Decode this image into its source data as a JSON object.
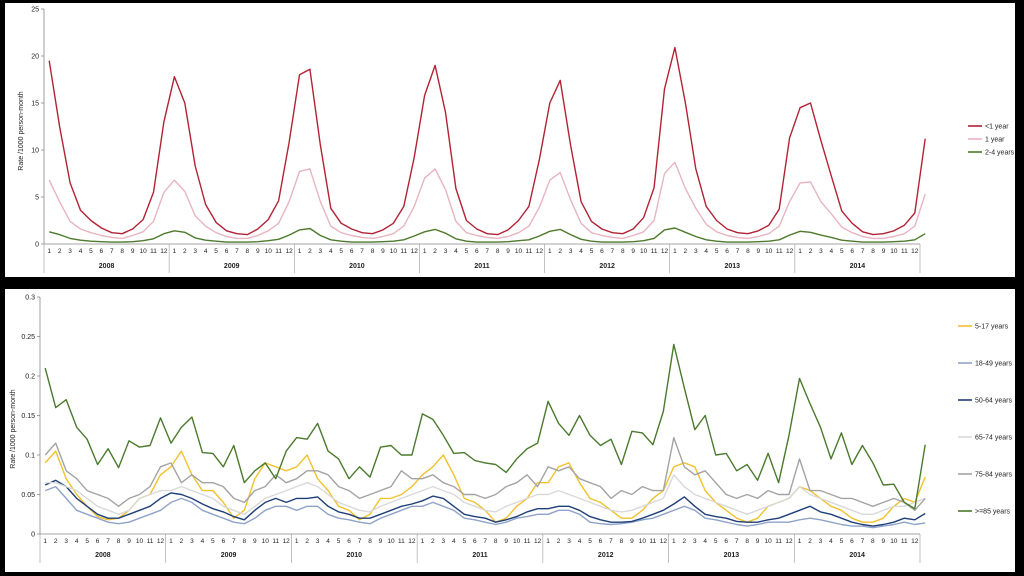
{
  "chart_data": [
    {
      "type": "line",
      "ylabel": "Rate /1000 person-month",
      "xlabel": "",
      "ylim": [
        0,
        25
      ],
      "yticks": [
        0,
        5,
        10,
        15,
        20,
        25
      ],
      "ytick_labels": [
        "0",
        "5",
        "10",
        "15",
        "20",
        "25"
      ],
      "grid": false,
      "legend_position": "right",
      "months": [
        "1",
        "2",
        "3",
        "4",
        "5",
        "6",
        "7",
        "8",
        "9",
        "10",
        "11",
        "12"
      ],
      "years": [
        "2008",
        "2009",
        "2010",
        "2011",
        "2012",
        "2013",
        "2014"
      ],
      "series": [
        {
          "name": "<1 year",
          "color": "#b22234",
          "values": [
            19.5,
            12.5,
            6.5,
            3.6,
            2.5,
            1.7,
            1.2,
            1.1,
            1.6,
            2.6,
            5.5,
            13.0,
            17.8,
            15.0,
            8.3,
            4.2,
            2.3,
            1.4,
            1.1,
            1.0,
            1.6,
            2.6,
            4.6,
            10.8,
            18.0,
            18.6,
            10.5,
            3.8,
            2.2,
            1.6,
            1.2,
            1.1,
            1.5,
            2.2,
            4.0,
            9.2,
            15.8,
            19.0,
            14.0,
            5.9,
            2.5,
            1.6,
            1.1,
            1.0,
            1.5,
            2.5,
            4.0,
            9.0,
            15.0,
            17.4,
            10.5,
            4.5,
            2.4,
            1.6,
            1.2,
            1.1,
            1.6,
            2.8,
            6.0,
            16.5,
            20.9,
            15.0,
            8.0,
            4.0,
            2.5,
            1.6,
            1.2,
            1.1,
            1.4,
            2.0,
            3.7,
            11.3,
            14.5,
            15.0,
            11.0,
            7.2,
            3.5,
            2.2,
            1.3,
            1.0,
            1.1,
            1.4,
            2.0,
            3.3,
            11.2
          ]
        },
        {
          "name": "1 year",
          "color": "#e8b4c0",
          "values": [
            6.8,
            4.5,
            2.4,
            1.6,
            1.2,
            0.9,
            0.7,
            0.6,
            0.9,
            1.3,
            2.4,
            5.5,
            6.8,
            5.6,
            3.0,
            1.9,
            1.2,
            0.8,
            0.6,
            0.6,
            0.9,
            1.4,
            2.2,
            4.5,
            7.7,
            8.0,
            4.5,
            1.9,
            1.2,
            0.9,
            0.7,
            0.6,
            0.8,
            1.1,
            1.9,
            4.0,
            7.0,
            8.0,
            5.8,
            2.4,
            1.2,
            0.9,
            0.7,
            0.6,
            0.8,
            1.2,
            1.9,
            3.9,
            6.8,
            7.6,
            4.7,
            2.2,
            1.2,
            0.9,
            0.7,
            0.6,
            0.9,
            1.3,
            2.5,
            7.5,
            8.7,
            5.9,
            3.8,
            2.1,
            1.3,
            0.9,
            0.7,
            0.6,
            0.8,
            1.1,
            1.9,
            4.5,
            6.5,
            6.6,
            4.5,
            3.2,
            1.8,
            1.2,
            0.8,
            0.6,
            0.6,
            0.8,
            1.1,
            1.9,
            5.3
          ]
        },
        {
          "name": "2-4 years",
          "color": "#4e7a2c",
          "values": [
            1.3,
            1.0,
            0.6,
            0.4,
            0.3,
            0.25,
            0.2,
            0.2,
            0.25,
            0.35,
            0.55,
            1.1,
            1.4,
            1.25,
            0.65,
            0.4,
            0.3,
            0.2,
            0.2,
            0.2,
            0.25,
            0.35,
            0.5,
            0.95,
            1.5,
            1.65,
            0.9,
            0.45,
            0.3,
            0.2,
            0.2,
            0.2,
            0.25,
            0.3,
            0.45,
            0.85,
            1.3,
            1.55,
            1.15,
            0.55,
            0.3,
            0.2,
            0.2,
            0.2,
            0.25,
            0.35,
            0.45,
            0.85,
            1.35,
            1.55,
            1.0,
            0.5,
            0.3,
            0.2,
            0.2,
            0.2,
            0.25,
            0.35,
            0.6,
            1.5,
            1.7,
            1.25,
            0.8,
            0.45,
            0.3,
            0.2,
            0.2,
            0.2,
            0.25,
            0.3,
            0.45,
            0.95,
            1.35,
            1.25,
            0.95,
            0.7,
            0.4,
            0.3,
            0.2,
            0.2,
            0.2,
            0.25,
            0.3,
            0.45,
            1.1
          ]
        }
      ]
    },
    {
      "type": "line",
      "ylabel": "Rate /1000 person-month",
      "xlabel": "",
      "ylim": [
        0,
        0.3
      ],
      "yticks": [
        0,
        0.05,
        0.1,
        0.15,
        0.2,
        0.25,
        0.3
      ],
      "ytick_labels": [
        "0",
        "0.05",
        "0.1",
        "0.15",
        "0.2",
        "0.25",
        "0.3"
      ],
      "grid": false,
      "legend_position": "right",
      "months": [
        "1",
        "2",
        "3",
        "4",
        "5",
        "6",
        "7",
        "8",
        "9",
        "10",
        "11",
        "12"
      ],
      "years": [
        "2008",
        "2009",
        "2010",
        "2011",
        "2012",
        "2013",
        "2014"
      ],
      "series": [
        {
          "name": "5-17 years",
          "color": "#f2c12e",
          "values": [
            0.09,
            0.105,
            0.07,
            0.05,
            0.035,
            0.022,
            0.018,
            0.02,
            0.03,
            0.045,
            0.05,
            0.075,
            0.085,
            0.105,
            0.075,
            0.055,
            0.055,
            0.04,
            0.02,
            0.03,
            0.07,
            0.09,
            0.085,
            0.08,
            0.085,
            0.1,
            0.07,
            0.055,
            0.035,
            0.03,
            0.018,
            0.025,
            0.045,
            0.045,
            0.05,
            0.06,
            0.075,
            0.085,
            0.1,
            0.075,
            0.045,
            0.04,
            0.03,
            0.015,
            0.02,
            0.035,
            0.045,
            0.065,
            0.065,
            0.085,
            0.09,
            0.065,
            0.045,
            0.04,
            0.03,
            0.02,
            0.02,
            0.03,
            0.045,
            0.055,
            0.085,
            0.09,
            0.085,
            0.055,
            0.04,
            0.03,
            0.02,
            0.015,
            0.02,
            0.035,
            0.04,
            0.045,
            0.06,
            0.055,
            0.045,
            0.035,
            0.03,
            0.02,
            0.015,
            0.015,
            0.02,
            0.035,
            0.045,
            0.04,
            0.072
          ]
        },
        {
          "name": "18-49 years",
          "color": "#8fa3c8",
          "values": [
            0.055,
            0.06,
            0.045,
            0.03,
            0.025,
            0.02,
            0.015,
            0.013,
            0.015,
            0.02,
            0.025,
            0.03,
            0.04,
            0.045,
            0.04,
            0.03,
            0.025,
            0.02,
            0.015,
            0.013,
            0.02,
            0.03,
            0.035,
            0.035,
            0.03,
            0.035,
            0.035,
            0.025,
            0.02,
            0.018,
            0.015,
            0.013,
            0.02,
            0.025,
            0.03,
            0.035,
            0.035,
            0.04,
            0.035,
            0.03,
            0.02,
            0.018,
            0.015,
            0.012,
            0.015,
            0.02,
            0.022,
            0.025,
            0.025,
            0.03,
            0.03,
            0.025,
            0.015,
            0.013,
            0.012,
            0.013,
            0.015,
            0.018,
            0.02,
            0.025,
            0.03,
            0.035,
            0.03,
            0.02,
            0.018,
            0.015,
            0.012,
            0.01,
            0.012,
            0.015,
            0.015,
            0.015,
            0.018,
            0.02,
            0.018,
            0.015,
            0.012,
            0.01,
            0.01,
            0.008,
            0.01,
            0.012,
            0.015,
            0.012,
            0.014
          ]
        },
        {
          "name": "50-64 years",
          "color": "#1f3f78",
          "values": [
            0.062,
            0.068,
            0.06,
            0.045,
            0.035,
            0.025,
            0.02,
            0.02,
            0.025,
            0.03,
            0.035,
            0.045,
            0.052,
            0.05,
            0.045,
            0.038,
            0.032,
            0.028,
            0.022,
            0.018,
            0.03,
            0.04,
            0.045,
            0.04,
            0.045,
            0.045,
            0.047,
            0.035,
            0.028,
            0.025,
            0.02,
            0.02,
            0.025,
            0.03,
            0.035,
            0.038,
            0.042,
            0.048,
            0.045,
            0.035,
            0.025,
            0.022,
            0.02,
            0.015,
            0.018,
            0.022,
            0.028,
            0.032,
            0.032,
            0.035,
            0.035,
            0.03,
            0.022,
            0.018,
            0.015,
            0.015,
            0.016,
            0.02,
            0.025,
            0.03,
            0.038,
            0.047,
            0.035,
            0.025,
            0.022,
            0.02,
            0.016,
            0.015,
            0.015,
            0.018,
            0.02,
            0.025,
            0.03,
            0.035,
            0.028,
            0.025,
            0.02,
            0.015,
            0.012,
            0.01,
            0.012,
            0.015,
            0.02,
            0.018,
            0.026
          ]
        },
        {
          "name": "65-74 years",
          "color": "#d9d9d9",
          "values": [
            0.065,
            0.065,
            0.06,
            0.055,
            0.045,
            0.035,
            0.03,
            0.025,
            0.03,
            0.045,
            0.05,
            0.055,
            0.055,
            0.06,
            0.055,
            0.05,
            0.045,
            0.035,
            0.03,
            0.025,
            0.035,
            0.045,
            0.05,
            0.055,
            0.06,
            0.065,
            0.06,
            0.05,
            0.04,
            0.035,
            0.03,
            0.028,
            0.035,
            0.04,
            0.045,
            0.05,
            0.055,
            0.06,
            0.055,
            0.05,
            0.04,
            0.035,
            0.03,
            0.028,
            0.035,
            0.04,
            0.045,
            0.05,
            0.05,
            0.055,
            0.05,
            0.045,
            0.04,
            0.035,
            0.03,
            0.028,
            0.03,
            0.035,
            0.04,
            0.045,
            0.075,
            0.06,
            0.05,
            0.045,
            0.04,
            0.035,
            0.03,
            0.025,
            0.03,
            0.035,
            0.04,
            0.045,
            0.06,
            0.05,
            0.045,
            0.04,
            0.035,
            0.03,
            0.025,
            0.025,
            0.03,
            0.035,
            0.035,
            0.04,
            0.045
          ]
        },
        {
          "name": "75-84 years",
          "color": "#a3a3a3",
          "values": [
            0.1,
            0.115,
            0.08,
            0.07,
            0.055,
            0.05,
            0.045,
            0.035,
            0.045,
            0.05,
            0.06,
            0.085,
            0.09,
            0.065,
            0.075,
            0.065,
            0.065,
            0.06,
            0.045,
            0.04,
            0.055,
            0.06,
            0.075,
            0.065,
            0.07,
            0.08,
            0.08,
            0.075,
            0.06,
            0.055,
            0.045,
            0.05,
            0.055,
            0.06,
            0.08,
            0.07,
            0.07,
            0.075,
            0.065,
            0.06,
            0.05,
            0.05,
            0.045,
            0.05,
            0.06,
            0.065,
            0.075,
            0.06,
            0.085,
            0.08,
            0.085,
            0.07,
            0.065,
            0.06,
            0.045,
            0.055,
            0.05,
            0.06,
            0.055,
            0.055,
            0.122,
            0.085,
            0.075,
            0.08,
            0.065,
            0.05,
            0.045,
            0.05,
            0.045,
            0.055,
            0.05,
            0.05,
            0.095,
            0.055,
            0.055,
            0.05,
            0.045,
            0.045,
            0.04,
            0.035,
            0.04,
            0.045,
            0.04,
            0.03,
            0.045
          ]
        },
        {
          "name": ">=85 years",
          "color": "#4a7a2c",
          "values": [
            0.21,
            0.16,
            0.17,
            0.135,
            0.12,
            0.088,
            0.108,
            0.084,
            0.118,
            0.11,
            0.112,
            0.147,
            0.115,
            0.135,
            0.148,
            0.103,
            0.102,
            0.085,
            0.112,
            0.065,
            0.08,
            0.09,
            0.07,
            0.105,
            0.122,
            0.12,
            0.14,
            0.105,
            0.095,
            0.07,
            0.085,
            0.072,
            0.11,
            0.112,
            0.1,
            0.1,
            0.152,
            0.145,
            0.125,
            0.102,
            0.103,
            0.093,
            0.09,
            0.088,
            0.078,
            0.095,
            0.108,
            0.115,
            0.168,
            0.14,
            0.125,
            0.15,
            0.125,
            0.112,
            0.12,
            0.088,
            0.13,
            0.128,
            0.113,
            0.155,
            0.24,
            0.185,
            0.132,
            0.15,
            0.1,
            0.102,
            0.08,
            0.088,
            0.068,
            0.102,
            0.065,
            0.125,
            0.197,
            0.165,
            0.135,
            0.095,
            0.128,
            0.088,
            0.112,
            0.09,
            0.062,
            0.063,
            0.04,
            0.032,
            0.113
          ]
        }
      ]
    }
  ]
}
